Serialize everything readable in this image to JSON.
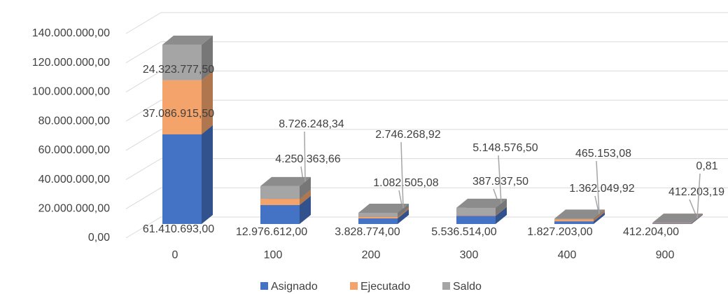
{
  "chart_data": {
    "type": "bar3d_stacked",
    "categories": [
      "0",
      "100",
      "200",
      "300",
      "400",
      "900"
    ],
    "series": [
      {
        "name": "Asignado",
        "color": "#4472c4",
        "values": [
          61410693.0,
          12976612.0,
          3828774.0,
          5536514.0,
          1827203.0,
          412204.0
        ],
        "value_labels": [
          "61.410.693,00",
          "12.976.612,00",
          "3.828.774,00",
          "5.536.514,00",
          "1.827.203,00",
          "412.204,00"
        ]
      },
      {
        "name": "Ejecutado",
        "color": "#f4a46b",
        "values": [
          37086915.5,
          4250363.66,
          1082505.08,
          387937.5,
          1362049.92,
          412203.19
        ],
        "value_labels": [
          "37.086.915,50",
          "4.250.363,66",
          "1.082.505,08",
          "387.937,50",
          "1.362.049,92",
          "412.203,19"
        ]
      },
      {
        "name": "Saldo",
        "color": "#a5a5a5",
        "values": [
          24323777.5,
          8726248.34,
          2746268.92,
          5148576.5,
          465153.08,
          0.81
        ],
        "value_labels": [
          "24.323.777,50",
          "8.726.248,34",
          "2.746.268,92",
          "5.148.576,50",
          "465.153,08",
          "0,81"
        ]
      }
    ],
    "ylim": [
      0,
      140000000
    ],
    "yticks": [
      {
        "value": 0,
        "label": "0,00"
      },
      {
        "value": 20000000,
        "label": "20.000.000,00"
      },
      {
        "value": 40000000,
        "label": "40.000.000,00"
      },
      {
        "value": 60000000,
        "label": "60.000.000,00"
      },
      {
        "value": 80000000,
        "label": "80.000.000,00"
      },
      {
        "value": 100000000,
        "label": "100.000.000,00"
      },
      {
        "value": 120000000,
        "label": "120.000.000,00"
      },
      {
        "value": 140000000,
        "label": "140.000.000,00"
      }
    ],
    "grid": true,
    "legend": "bottom"
  }
}
